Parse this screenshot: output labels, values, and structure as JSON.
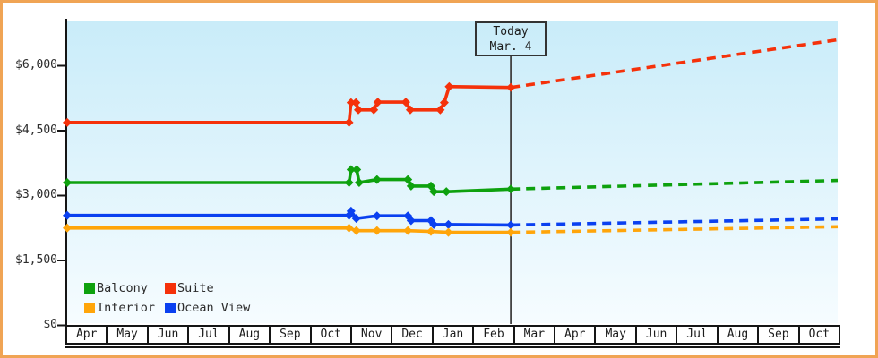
{
  "chart_data": {
    "type": "line",
    "title": "",
    "x_tick_labels": [
      "Apr",
      "May",
      "Jun",
      "Jul",
      "Aug",
      "Sep",
      "Oct",
      "Nov",
      "Dec",
      "Jan",
      "Feb",
      "Mar",
      "Apr",
      "May",
      "Jun",
      "Jul",
      "Aug",
      "Sep",
      "Oct"
    ],
    "y_ticks": [
      {
        "label": "$6,000",
        "value": 6000
      },
      {
        "label": "$4,500",
        "value": 4500
      },
      {
        "label": "$3,000",
        "value": 3000
      },
      {
        "label": "$1,500",
        "value": 1500
      },
      {
        "label": "$0",
        "value": 0
      }
    ],
    "ylim": [
      0,
      7050
    ],
    "grid": false,
    "legend_position": "bottom-left-inside",
    "today": {
      "line1": "Today",
      "line2": "Mar. 4",
      "month_frac": 10.94
    },
    "series": [
      {
        "name": "Suite",
        "color": "#f5310a",
        "solid": [
          [
            0,
            4690
          ],
          [
            6.95,
            4690
          ],
          [
            7.0,
            5150
          ],
          [
            7.12,
            5150
          ],
          [
            7.18,
            4980
          ],
          [
            7.56,
            4980
          ],
          [
            7.66,
            5160
          ],
          [
            8.35,
            5160
          ],
          [
            8.46,
            4980
          ],
          [
            9.2,
            4980
          ],
          [
            9.3,
            5150
          ],
          [
            9.42,
            5520
          ],
          [
            10.94,
            5500
          ]
        ],
        "projection": [
          [
            10.94,
            5500
          ],
          [
            19,
            6600
          ]
        ]
      },
      {
        "name": "Balcony",
        "color": "#0ea10e",
        "solid": [
          [
            0,
            3300
          ],
          [
            6.95,
            3300
          ],
          [
            7.0,
            3600
          ],
          [
            7.14,
            3600
          ],
          [
            7.2,
            3300
          ],
          [
            7.64,
            3370
          ],
          [
            8.4,
            3370
          ],
          [
            8.48,
            3220
          ],
          [
            8.97,
            3220
          ],
          [
            9.04,
            3090
          ],
          [
            9.35,
            3090
          ],
          [
            10.94,
            3150
          ]
        ],
        "projection": [
          [
            10.94,
            3150
          ],
          [
            19,
            3350
          ]
        ]
      },
      {
        "name": "Ocean View",
        "color": "#0a40f0",
        "solid": [
          [
            0,
            2540
          ],
          [
            6.95,
            2540
          ],
          [
            7.0,
            2640
          ],
          [
            7.13,
            2470
          ],
          [
            7.64,
            2530
          ],
          [
            8.4,
            2530
          ],
          [
            8.48,
            2420
          ],
          [
            8.97,
            2420
          ],
          [
            9.04,
            2330
          ],
          [
            9.4,
            2330
          ],
          [
            10.94,
            2320
          ]
        ],
        "projection": [
          [
            10.94,
            2320
          ],
          [
            19,
            2460
          ]
        ]
      },
      {
        "name": "Interior",
        "color": "#ffa50a",
        "solid": [
          [
            0,
            2250
          ],
          [
            6.95,
            2250
          ],
          [
            7.13,
            2190
          ],
          [
            7.64,
            2190
          ],
          [
            8.4,
            2190
          ],
          [
            8.97,
            2170
          ],
          [
            9.4,
            2150
          ],
          [
            10.94,
            2150
          ]
        ],
        "projection": [
          [
            10.94,
            2150
          ],
          [
            19,
            2280
          ]
        ]
      }
    ]
  },
  "legend": {
    "items": [
      {
        "label": "Balcony",
        "color": "#0ea10e"
      },
      {
        "label": "Suite",
        "color": "#f5310a"
      },
      {
        "label": "Interior",
        "color": "#ffa50a"
      },
      {
        "label": "Ocean View",
        "color": "#0a40f0"
      }
    ]
  },
  "colors": {
    "frame_border": "#f0a454",
    "plot_bg_top": "#c9ecf9",
    "plot_bg_bottom": "#f6fcff",
    "axis": "#151515",
    "today_line": "#444444",
    "text": "#2b2b2b"
  }
}
